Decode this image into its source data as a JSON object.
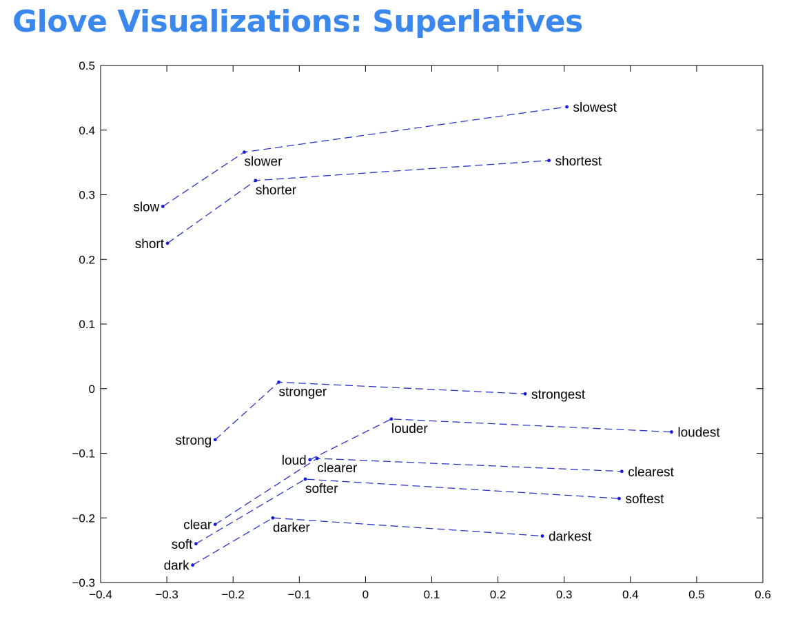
{
  "header": {
    "title": "Glove Visualizations: Superlatives"
  },
  "chart_data": {
    "type": "scatter",
    "title": "",
    "xlabel": "",
    "ylabel": "",
    "xlim": [
      -0.4,
      0.6
    ],
    "ylim": [
      -0.3,
      0.5
    ],
    "x_ticks": [
      -0.4,
      -0.3,
      -0.2,
      -0.1,
      0,
      0.1,
      0.2,
      0.3,
      0.4,
      0.5,
      0.6
    ],
    "y_ticks": [
      -0.3,
      -0.2,
      -0.1,
      0,
      0.1,
      0.2,
      0.3,
      0.4,
      0.5
    ],
    "x_tick_labels": [
      "−0.4",
      "−0.3",
      "−0.2",
      "−0.1",
      "0",
      "0.1",
      "0.2",
      "0.3",
      "0.4",
      "0.5",
      "0.6"
    ],
    "y_tick_labels": [
      "−0.3",
      "−0.2",
      "−0.1",
      "0",
      "0.1",
      "0.2",
      "0.3",
      "0.4",
      "0.5"
    ],
    "grid": false,
    "marker_color": "#1a1adf",
    "line_color": "#2a35c8",
    "line_style": "dashed",
    "groups": [
      {
        "points": [
          {
            "word": "slow",
            "x": -0.306,
            "y": 0.282,
            "label_side": "left"
          },
          {
            "word": "slower",
            "x": -0.183,
            "y": 0.366,
            "label_side": "below"
          },
          {
            "word": "slowest",
            "x": 0.304,
            "y": 0.436,
            "label_side": "right"
          }
        ]
      },
      {
        "points": [
          {
            "word": "short",
            "x": -0.299,
            "y": 0.225,
            "label_side": "left"
          },
          {
            "word": "shorter",
            "x": -0.166,
            "y": 0.322,
            "label_side": "below"
          },
          {
            "word": "shortest",
            "x": 0.277,
            "y": 0.353,
            "label_side": "right"
          }
        ]
      },
      {
        "points": [
          {
            "word": "strong",
            "x": -0.227,
            "y": -0.079,
            "label_side": "left"
          },
          {
            "word": "stronger",
            "x": -0.131,
            "y": 0.01,
            "label_side": "below"
          },
          {
            "word": "strongest",
            "x": 0.241,
            "y": -0.008,
            "label_side": "right"
          }
        ]
      },
      {
        "points": [
          {
            "word": "loud",
            "x": -0.084,
            "y": -0.11,
            "label_side": "left"
          },
          {
            "word": "louder",
            "x": 0.039,
            "y": -0.047,
            "label_side": "below"
          },
          {
            "word": "loudest",
            "x": 0.462,
            "y": -0.067,
            "label_side": "right"
          }
        ]
      },
      {
        "points": [
          {
            "word": "clear",
            "x": -0.227,
            "y": -0.21,
            "label_side": "left"
          },
          {
            "word": "clearer",
            "x": -0.073,
            "y": -0.108,
            "label_side": "below"
          },
          {
            "word": "clearest",
            "x": 0.387,
            "y": -0.128,
            "label_side": "right"
          }
        ]
      },
      {
        "points": [
          {
            "word": "soft",
            "x": -0.256,
            "y": -0.24,
            "label_side": "left"
          },
          {
            "word": "softer",
            "x": -0.091,
            "y": -0.14,
            "label_side": "below"
          },
          {
            "word": "softest",
            "x": 0.383,
            "y": -0.17,
            "label_side": "right"
          }
        ]
      },
      {
        "points": [
          {
            "word": "dark",
            "x": -0.261,
            "y": -0.273,
            "label_side": "left"
          },
          {
            "word": "darker",
            "x": -0.14,
            "y": -0.2,
            "label_side": "below"
          },
          {
            "word": "darkest",
            "x": 0.267,
            "y": -0.228,
            "label_side": "right"
          }
        ]
      }
    ]
  }
}
